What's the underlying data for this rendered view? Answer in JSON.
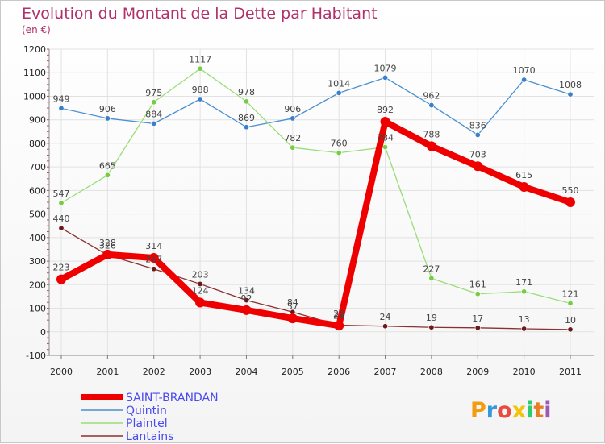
{
  "chart_data": {
    "type": "line",
    "title": "Evolution du Montant de la Dette par Habitant",
    "subtitle": "(en €)",
    "x": [
      "2000",
      "2001",
      "2002",
      "2003",
      "2004",
      "2005",
      "2006",
      "2007",
      "2008",
      "2009",
      "2010",
      "2011"
    ],
    "ylim": [
      -100,
      1200
    ],
    "yticks": [
      -100,
      0,
      100,
      200,
      300,
      400,
      500,
      600,
      700,
      800,
      900,
      1000,
      1100,
      1200
    ],
    "grid": true,
    "legend_position": "bottom-left",
    "series": [
      {
        "name": "Quintin",
        "color": "#4a8fd0",
        "point_color": "#3a7fc8",
        "values": [
          949,
          906,
          884,
          988,
          869,
          906,
          1014,
          1079,
          962,
          836,
          1070,
          1008
        ]
      },
      {
        "name": "Plaintel",
        "color": "#99dd77",
        "point_color": "#77cc44",
        "values": [
          547,
          665,
          975,
          1117,
          978,
          782,
          760,
          784,
          227,
          161,
          171,
          121
        ]
      },
      {
        "name": "Lantains",
        "color": "#8a3030",
        "point_color": "#6a1a1a",
        "values": [
          440,
          326,
          267,
          203,
          134,
          84,
          28,
          24,
          19,
          17,
          13,
          10
        ]
      },
      {
        "name": "SAINT-BRANDAN",
        "color": "#ee0000",
        "point_color": "#ee0000",
        "values": [
          223,
          328,
          314,
          124,
          92,
          57,
          26,
          892,
          788,
          703,
          615,
          550
        ]
      }
    ],
    "legend_order": [
      "SAINT-BRANDAN",
      "Quintin",
      "Plaintel",
      "Lantains"
    ]
  },
  "logo": {
    "text": "Proxiti"
  }
}
